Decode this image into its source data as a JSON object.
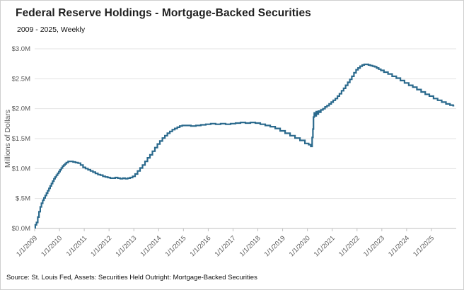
{
  "chart_data": {
    "type": "line",
    "title": "Federal Reserve Holdings - Mortgage-Backed Securities",
    "subtitle": "2009 - 2025, Weekly",
    "ylabel": "Millions of Dollars",
    "xlabel": "",
    "source": "Source: St. Louis Fed, Assets: Securities Held Outright: Mortgage-Backed Securities",
    "ylim": [
      0,
      3
    ],
    "x_domain": [
      2009,
      2026
    ],
    "grid": "horizontal-only",
    "legend_position": "none",
    "line_color": "#2b6a8d",
    "grid_color": "#e3e3e3",
    "axis_color": "#bfbfbf",
    "tick_label_color": "#595959",
    "y_ticks": [
      {
        "value": 3.0,
        "label": "$3.0M"
      },
      {
        "value": 2.5,
        "label": "$2.5M"
      },
      {
        "value": 2.0,
        "label": "$2.0M"
      },
      {
        "value": 1.5,
        "label": "$1.5M"
      },
      {
        "value": 1.0,
        "label": "$1.0M"
      },
      {
        "value": 0.5,
        "label": "$.5M"
      },
      {
        "value": 0.0,
        "label": "$0.0M"
      }
    ],
    "x_ticks": [
      {
        "value": 2009,
        "label": "1/1/2009"
      },
      {
        "value": 2010,
        "label": "1/1/2010"
      },
      {
        "value": 2011,
        "label": "1/1/2011"
      },
      {
        "value": 2012,
        "label": "1/1/2012"
      },
      {
        "value": 2013,
        "label": "1/1/2013"
      },
      {
        "value": 2014,
        "label": "1/1/2014"
      },
      {
        "value": 2015,
        "label": "1/1/2015"
      },
      {
        "value": 2016,
        "label": "1/1/2016"
      },
      {
        "value": 2017,
        "label": "1/1/2017"
      },
      {
        "value": 2018,
        "label": "1/1/2018"
      },
      {
        "value": 2019,
        "label": "1/1/2019"
      },
      {
        "value": 2020,
        "label": "1/1/2020"
      },
      {
        "value": 2021,
        "label": "1/1/2021"
      },
      {
        "value": 2022,
        "label": "1/1/2022"
      },
      {
        "value": 2023,
        "label": "1/1/2023"
      },
      {
        "value": 2024,
        "label": "1/1/2024"
      },
      {
        "value": 2025,
        "label": "1/1/2025"
      }
    ],
    "series": [
      {
        "name": "Mortgage-Backed Securities Held Outright",
        "points": [
          [
            2009.0,
            0.01
          ],
          [
            2009.05,
            0.06
          ],
          [
            2009.1,
            0.1
          ],
          [
            2009.15,
            0.19
          ],
          [
            2009.2,
            0.28
          ],
          [
            2009.25,
            0.36
          ],
          [
            2009.3,
            0.42
          ],
          [
            2009.35,
            0.47
          ],
          [
            2009.4,
            0.51
          ],
          [
            2009.45,
            0.55
          ],
          [
            2009.5,
            0.59
          ],
          [
            2009.55,
            0.63
          ],
          [
            2009.6,
            0.67
          ],
          [
            2009.65,
            0.71
          ],
          [
            2009.7,
            0.75
          ],
          [
            2009.75,
            0.79
          ],
          [
            2009.8,
            0.83
          ],
          [
            2009.85,
            0.86
          ],
          [
            2009.9,
            0.89
          ],
          [
            2009.95,
            0.92
          ],
          [
            2010.0,
            0.95
          ],
          [
            2010.05,
            0.98
          ],
          [
            2010.1,
            1.01
          ],
          [
            2010.15,
            1.04
          ],
          [
            2010.2,
            1.06
          ],
          [
            2010.25,
            1.08
          ],
          [
            2010.3,
            1.1
          ],
          [
            2010.4,
            1.12
          ],
          [
            2010.5,
            1.12
          ],
          [
            2010.6,
            1.11
          ],
          [
            2010.7,
            1.1
          ],
          [
            2010.8,
            1.09
          ],
          [
            2010.9,
            1.06
          ],
          [
            2011.0,
            1.02
          ],
          [
            2011.1,
            1.0
          ],
          [
            2011.2,
            0.98
          ],
          [
            2011.3,
            0.96
          ],
          [
            2011.4,
            0.94
          ],
          [
            2011.5,
            0.92
          ],
          [
            2011.6,
            0.9
          ],
          [
            2011.7,
            0.89
          ],
          [
            2011.8,
            0.87
          ],
          [
            2011.9,
            0.86
          ],
          [
            2012.0,
            0.85
          ],
          [
            2012.1,
            0.84
          ],
          [
            2012.2,
            0.84
          ],
          [
            2012.3,
            0.85
          ],
          [
            2012.4,
            0.84
          ],
          [
            2012.5,
            0.83
          ],
          [
            2012.6,
            0.84
          ],
          [
            2012.7,
            0.83
          ],
          [
            2012.8,
            0.84
          ],
          [
            2012.9,
            0.85
          ],
          [
            2013.0,
            0.87
          ],
          [
            2013.1,
            0.91
          ],
          [
            2013.2,
            0.96
          ],
          [
            2013.3,
            1.01
          ],
          [
            2013.4,
            1.06
          ],
          [
            2013.5,
            1.12
          ],
          [
            2013.6,
            1.18
          ],
          [
            2013.7,
            1.23
          ],
          [
            2013.8,
            1.29
          ],
          [
            2013.9,
            1.35
          ],
          [
            2014.0,
            1.41
          ],
          [
            2014.1,
            1.46
          ],
          [
            2014.2,
            1.51
          ],
          [
            2014.3,
            1.55
          ],
          [
            2014.4,
            1.59
          ],
          [
            2014.5,
            1.62
          ],
          [
            2014.6,
            1.65
          ],
          [
            2014.7,
            1.67
          ],
          [
            2014.8,
            1.69
          ],
          [
            2014.9,
            1.71
          ],
          [
            2015.0,
            1.72
          ],
          [
            2015.2,
            1.72
          ],
          [
            2015.4,
            1.71
          ],
          [
            2015.6,
            1.72
          ],
          [
            2015.8,
            1.73
          ],
          [
            2016.0,
            1.74
          ],
          [
            2016.2,
            1.75
          ],
          [
            2016.4,
            1.74
          ],
          [
            2016.6,
            1.75
          ],
          [
            2016.8,
            1.74
          ],
          [
            2017.0,
            1.75
          ],
          [
            2017.2,
            1.76
          ],
          [
            2017.4,
            1.77
          ],
          [
            2017.6,
            1.76
          ],
          [
            2017.8,
            1.77
          ],
          [
            2018.0,
            1.76
          ],
          [
            2018.2,
            1.74
          ],
          [
            2018.4,
            1.72
          ],
          [
            2018.6,
            1.7
          ],
          [
            2018.8,
            1.67
          ],
          [
            2019.0,
            1.63
          ],
          [
            2019.2,
            1.59
          ],
          [
            2019.4,
            1.55
          ],
          [
            2019.6,
            1.51
          ],
          [
            2019.8,
            1.47
          ],
          [
            2020.0,
            1.42
          ],
          [
            2020.1,
            1.4
          ],
          [
            2020.17,
            1.37
          ],
          [
            2020.21,
            1.52
          ],
          [
            2020.23,
            1.66
          ],
          [
            2020.26,
            1.86
          ],
          [
            2020.29,
            1.93
          ],
          [
            2020.33,
            1.88
          ],
          [
            2020.38,
            1.95
          ],
          [
            2020.42,
            1.91
          ],
          [
            2020.46,
            1.96
          ],
          [
            2020.5,
            1.94
          ],
          [
            2020.58,
            1.98
          ],
          [
            2020.67,
            2.0
          ],
          [
            2020.75,
            2.03
          ],
          [
            2020.83,
            2.05
          ],
          [
            2020.92,
            2.08
          ],
          [
            2021.0,
            2.11
          ],
          [
            2021.08,
            2.14
          ],
          [
            2021.17,
            2.17
          ],
          [
            2021.25,
            2.21
          ],
          [
            2021.33,
            2.25
          ],
          [
            2021.42,
            2.3
          ],
          [
            2021.5,
            2.34
          ],
          [
            2021.58,
            2.39
          ],
          [
            2021.67,
            2.44
          ],
          [
            2021.75,
            2.49
          ],
          [
            2021.83,
            2.54
          ],
          [
            2021.92,
            2.6
          ],
          [
            2022.0,
            2.65
          ],
          [
            2022.08,
            2.68
          ],
          [
            2022.17,
            2.71
          ],
          [
            2022.25,
            2.73
          ],
          [
            2022.33,
            2.74
          ],
          [
            2022.42,
            2.74
          ],
          [
            2022.5,
            2.73
          ],
          [
            2022.58,
            2.72
          ],
          [
            2022.67,
            2.71
          ],
          [
            2022.75,
            2.7
          ],
          [
            2022.83,
            2.68
          ],
          [
            2022.92,
            2.66
          ],
          [
            2023.0,
            2.64
          ],
          [
            2023.17,
            2.61
          ],
          [
            2023.33,
            2.58
          ],
          [
            2023.5,
            2.54
          ],
          [
            2023.67,
            2.51
          ],
          [
            2023.83,
            2.47
          ],
          [
            2024.0,
            2.43
          ],
          [
            2024.17,
            2.39
          ],
          [
            2024.33,
            2.36
          ],
          [
            2024.5,
            2.32
          ],
          [
            2024.67,
            2.28
          ],
          [
            2024.83,
            2.24
          ],
          [
            2025.0,
            2.21
          ],
          [
            2025.17,
            2.17
          ],
          [
            2025.33,
            2.14
          ],
          [
            2025.5,
            2.11
          ],
          [
            2025.67,
            2.08
          ],
          [
            2025.83,
            2.06
          ],
          [
            2025.92,
            2.05
          ]
        ]
      }
    ]
  }
}
